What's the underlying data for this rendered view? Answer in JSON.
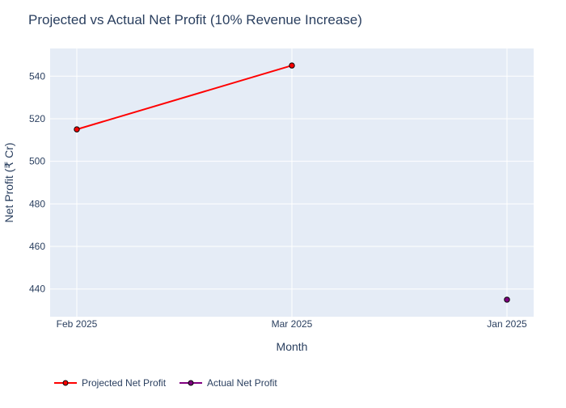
{
  "chart_data": {
    "type": "line",
    "title": "Projected vs Actual Net Profit (10% Revenue Increase)",
    "xlabel": "Month",
    "ylabel": "Net Profit (₹ Cr)",
    "categories": [
      "Feb 2025",
      "Mar 2025",
      "Jan 2025"
    ],
    "ylim": [
      427,
      553
    ],
    "yticks": [
      440,
      460,
      480,
      500,
      520,
      540
    ],
    "grid": true,
    "legend_position": "bottom-left",
    "series": [
      {
        "name": "Projected Net Profit",
        "color": "#ff0000",
        "mode": "lines+markers",
        "points": [
          {
            "x": "Feb 2025",
            "y": 515
          },
          {
            "x": "Mar 2025",
            "y": 545
          }
        ]
      },
      {
        "name": "Actual Net Profit",
        "color": "#800080",
        "mode": "lines+markers",
        "points": [
          {
            "x": "Jan 2025",
            "y": 435
          }
        ]
      }
    ]
  }
}
